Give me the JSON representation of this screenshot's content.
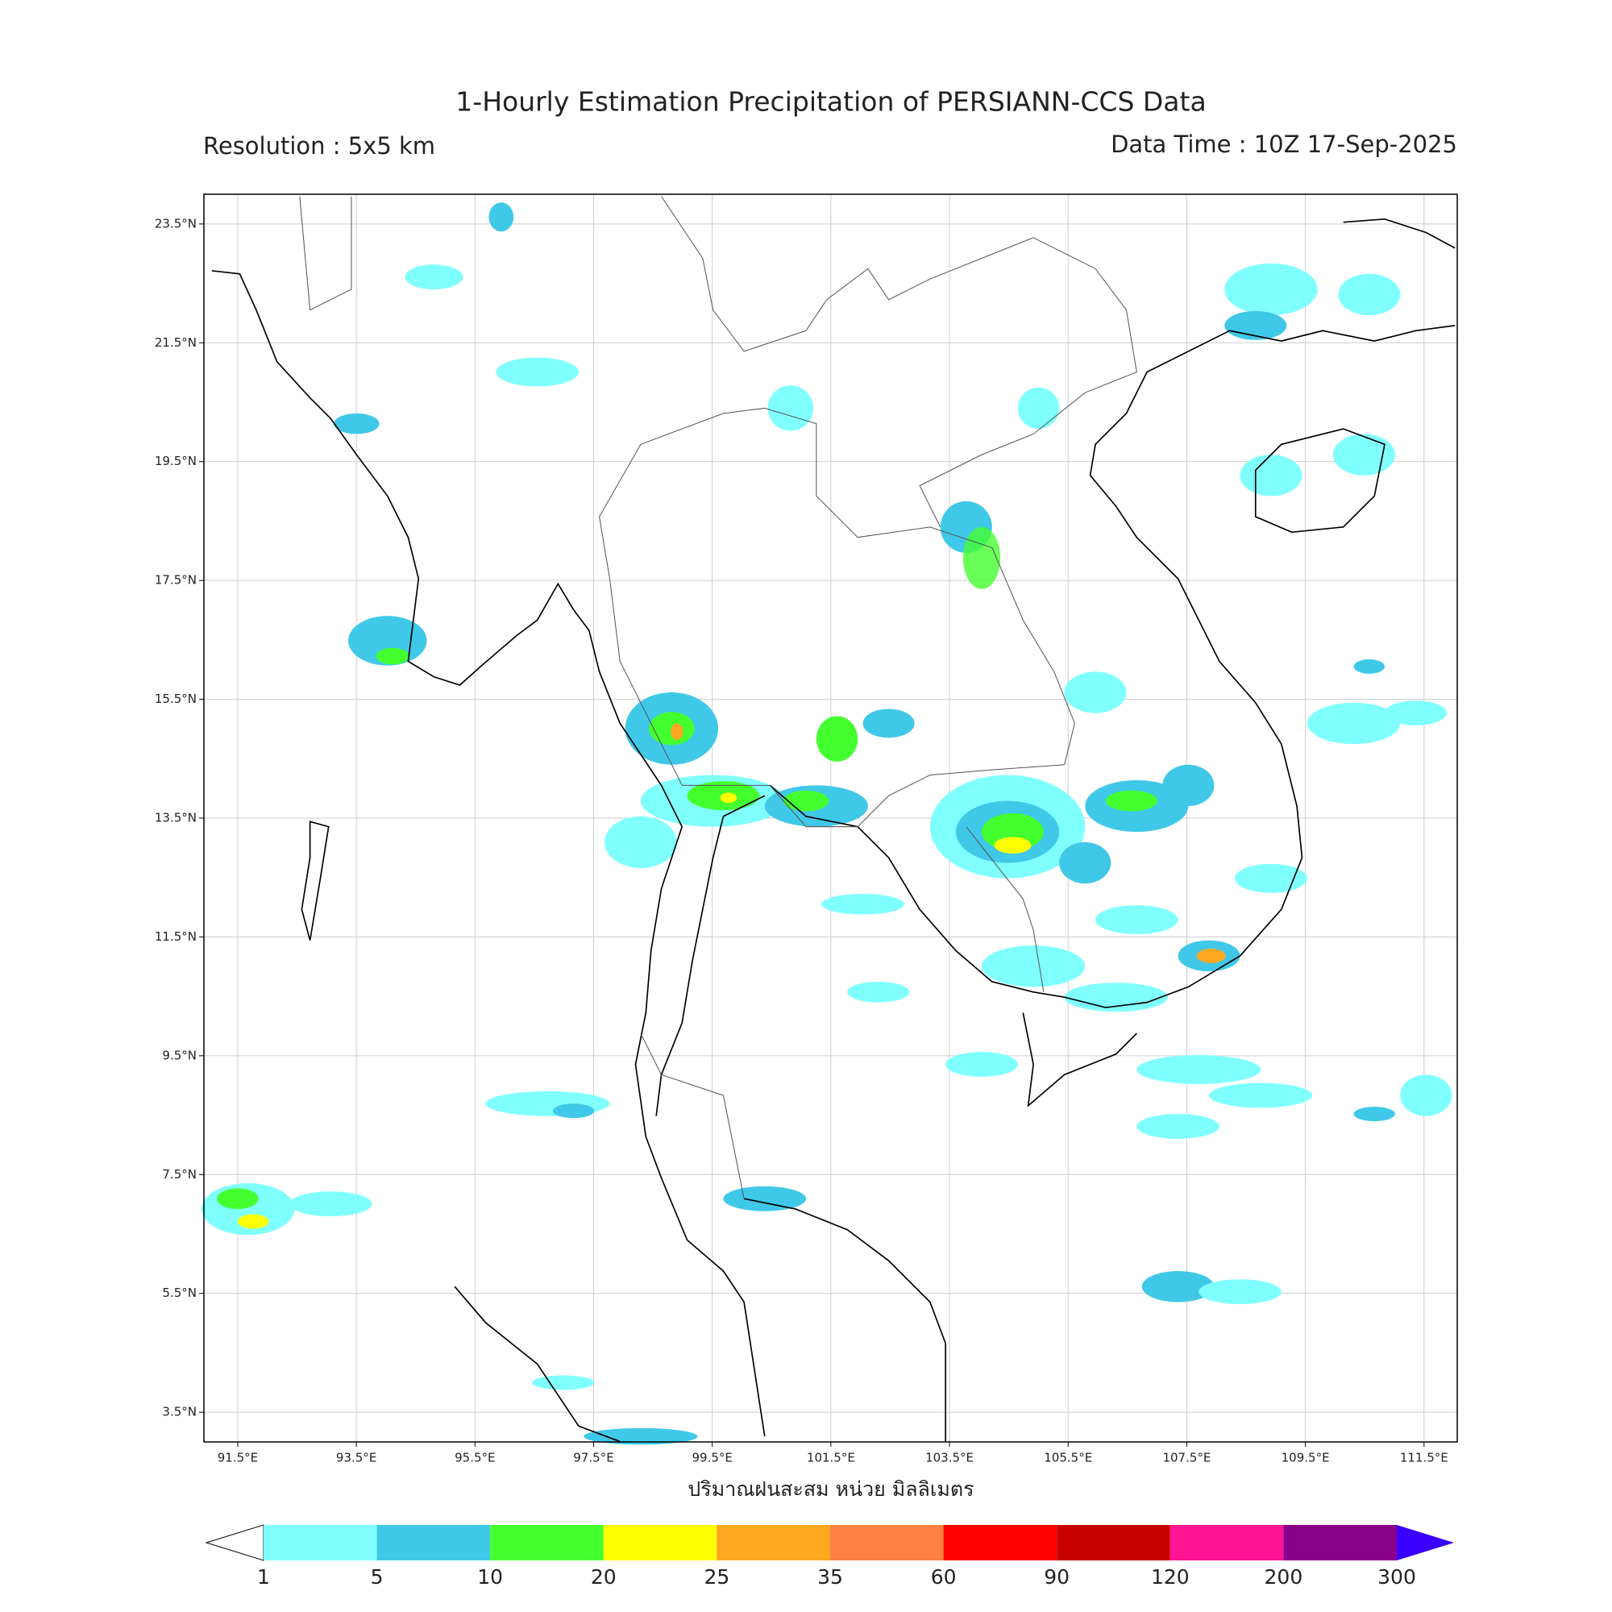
{
  "title": "1-Hourly Estimation Precipitation of PERSIANN-CCS Data",
  "subtitle_left": "Resolution : 5x5 km",
  "subtitle_right": "Data Time : 10Z 17-Sep-2025",
  "map": {
    "xlim": [
      90.93,
      112.06
    ],
    "ylim": [
      3.0,
      24.0
    ],
    "xticks": [
      {
        "value": 91.5,
        "label": "91.5°E"
      },
      {
        "value": 93.5,
        "label": "93.5°E"
      },
      {
        "value": 95.5,
        "label": "95.5°E"
      },
      {
        "value": 97.5,
        "label": "97.5°E"
      },
      {
        "value": 99.5,
        "label": "99.5°E"
      },
      {
        "value": 101.5,
        "label": "101.5°E"
      },
      {
        "value": 103.5,
        "label": "103.5°E"
      },
      {
        "value": 105.5,
        "label": "105.5°E"
      },
      {
        "value": 107.5,
        "label": "107.5°E"
      },
      {
        "value": 109.5,
        "label": "109.5°E"
      },
      {
        "value": 111.5,
        "label": "111.5°E"
      }
    ],
    "yticks": [
      {
        "value": 3.5,
        "label": "3.5°N"
      },
      {
        "value": 5.5,
        "label": "5.5°N"
      },
      {
        "value": 7.5,
        "label": "7.5°N"
      },
      {
        "value": 9.5,
        "label": "9.5°N"
      },
      {
        "value": 11.5,
        "label": "11.5°N"
      },
      {
        "value": 13.5,
        "label": "13.5°N"
      },
      {
        "value": 15.5,
        "label": "15.5°N"
      },
      {
        "value": 17.5,
        "label": "17.5°N"
      },
      {
        "value": 19.5,
        "label": "19.5°N"
      },
      {
        "value": 21.5,
        "label": "21.5°N"
      },
      {
        "value": 23.5,
        "label": "23.5°N"
      }
    ],
    "grid": true,
    "xlabel": "ปริมาณฝนสะสม หน่วย มิลลิเมตร"
  },
  "colorbar": {
    "levels": [
      1,
      5,
      10,
      20,
      25,
      35,
      60,
      90,
      120,
      200,
      300
    ],
    "colors": [
      "#80ffff",
      "#40c8e8",
      "#44ff2e",
      "#ffff00",
      "#ffa820",
      "#ff8040",
      "#ff0000",
      "#c80000",
      "#ff1493",
      "#8b008b"
    ],
    "under_color": "#ffffff",
    "over_color": "#3a00ff"
  }
}
